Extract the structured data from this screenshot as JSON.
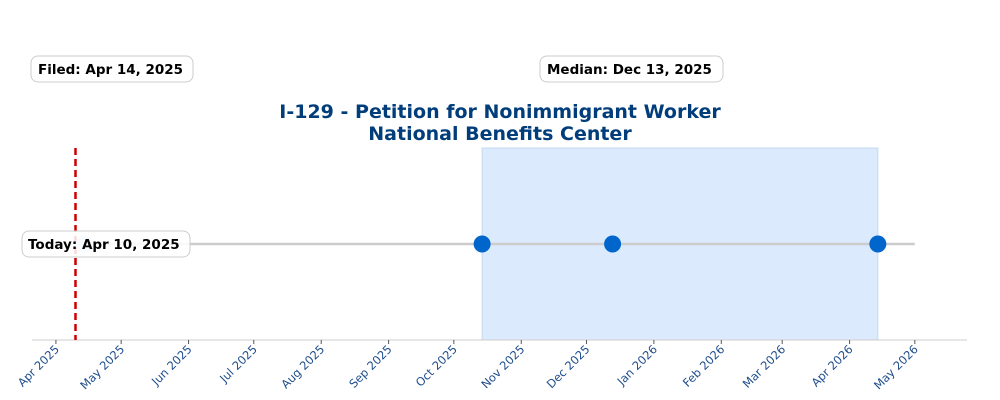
{
  "chart_data": {
    "type": "timeline",
    "title_lines": [
      "I-129 - Petition for Nonimmigrant Worker",
      "National Benefits Center"
    ],
    "x_range": [
      "2025-03-21",
      "2026-05-25"
    ],
    "tick_labels": [
      "Apr 2025",
      "May 2025",
      "Jun 2025",
      "Jul 2025",
      "Aug 2025",
      "Sep 2025",
      "Oct 2025",
      "Nov 2025",
      "Dec 2025",
      "Jan 2026",
      "Feb 2026",
      "Mar 2026",
      "Apr 2026",
      "May 2026"
    ],
    "tick_dates": [
      "2025-04-01",
      "2025-05-01",
      "2025-06-01",
      "2025-07-01",
      "2025-08-01",
      "2025-09-01",
      "2025-10-01",
      "2025-11-01",
      "2025-12-01",
      "2026-01-01",
      "2026-02-01",
      "2026-03-01",
      "2026-04-01",
      "2026-05-01"
    ],
    "line": {
      "start": "2025-04-14",
      "end": "2026-05-01"
    },
    "points": [
      "2025-04-14",
      "2025-10-14",
      "2025-12-13",
      "2026-04-14"
    ],
    "shaded_range": [
      "2025-10-14",
      "2026-04-14"
    ],
    "today_line": "2025-04-10",
    "annotations": {
      "filed": "Filed: Apr 14, 2025",
      "median": "Median: Dec 13, 2025",
      "today": "Today: Apr 10, 2025"
    },
    "colors": {
      "title": "#003d7a",
      "ticks": "#1f4e8c",
      "point": "#0066cc",
      "first_point": "#cfe0f3",
      "line": "#cccccc",
      "shade": "#dceafd",
      "today": "#cc0000"
    }
  }
}
